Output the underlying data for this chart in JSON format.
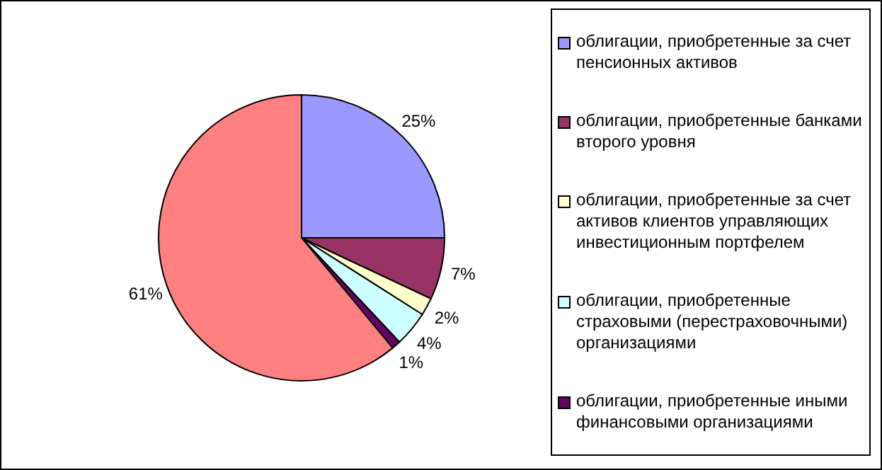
{
  "chart_data": {
    "type": "pie",
    "categories": [
      "облигации, приобретенные за счет пенсионных активов",
      "облигации, приобретенные банками второго уровня",
      "облигации,  приобретенные  за счет  активов  клиентов управляющих инвестиционным портфелем",
      "облигации, приобретенные страховыми (перестраховочными) организациями",
      "облигации, приобретенные иными финансовыми организациями",
      null
    ],
    "values": [
      25,
      7,
      2,
      4,
      1,
      61
    ],
    "value_labels": [
      "25%",
      "7%",
      "2%",
      "4%",
      "1%",
      "61%"
    ],
    "colors": [
      "#9999ff",
      "#993366",
      "#ffffcc",
      "#ccffff",
      "#660066",
      "#ff8080"
    ],
    "legend": "right"
  }
}
